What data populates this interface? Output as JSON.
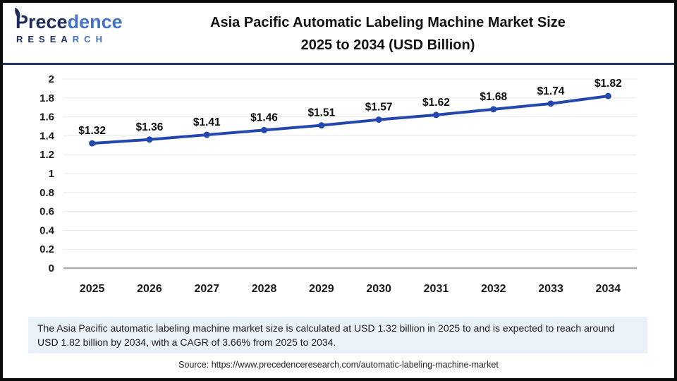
{
  "brand": {
    "word_dark": "Prece",
    "word_light": "dence",
    "sub_dark": "RESEA",
    "sub_light": "RCH"
  },
  "header": {
    "title_line1": "Asia Pacific Automatic Labeling Machine Market Size",
    "title_line2": "2025 to 2034 (USD Billion)"
  },
  "chart_data": {
    "type": "line",
    "title": "Asia Pacific Automatic Labeling Machine Market Size 2025 to 2034 (USD Billion)",
    "unit": "USD Billion",
    "categories": [
      "2025",
      "2026",
      "2027",
      "2028",
      "2029",
      "2030",
      "2031",
      "2032",
      "2033",
      "2034"
    ],
    "values": [
      1.32,
      1.36,
      1.41,
      1.46,
      1.51,
      1.57,
      1.62,
      1.68,
      1.74,
      1.82
    ],
    "data_labels": [
      "$1.32",
      "$1.36",
      "$1.41",
      "$1.46",
      "$1.51",
      "$1.57",
      "$1.62",
      "$1.68",
      "$1.74",
      "$1.82"
    ],
    "label_prefix": "$",
    "xlabel": "",
    "ylabel": "",
    "ylim": [
      0,
      2
    ],
    "ytick_step": 0.2,
    "grid": true,
    "legend": false,
    "line_color": "#2447AE",
    "marker_color": "#2447AE",
    "grid_color": "#E9E9E9",
    "axis_color": "#ABABAB"
  },
  "note": {
    "text": "The Asia Pacific automatic labeling machine market size is calculated at USD 1.32 billion in 2025 to and is expected to reach around USD 1.82 billion by 2034, with a CAGR of 3.66% from 2025 to 2034."
  },
  "source": {
    "text": "Source: https://www.precedenceresearch.com/automatic-labeling-machine-market"
  },
  "colors": {
    "divider_navy": "#1F3864",
    "brand_navy": "#1E2D5E",
    "brand_blue": "#4273C8",
    "note_bg": "#E9F1F9",
    "title_text": "#111111"
  }
}
